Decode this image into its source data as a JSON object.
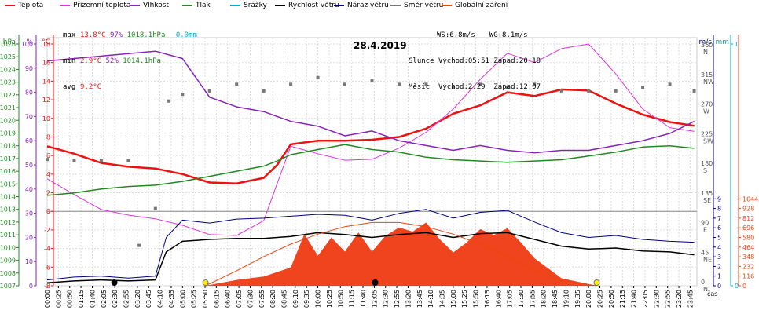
{
  "legend": [
    {
      "label": "Teplota",
      "color": "#ee1111"
    },
    {
      "label": "Přízemní teplota",
      "color": "#dd33dd"
    },
    {
      "label": "Vlhkost",
      "color": "#8822bb"
    },
    {
      "label": "Tlak",
      "color": "#228822"
    },
    {
      "label": "Srážky",
      "color": "#00aacc"
    },
    {
      "label": "Rychlost větru",
      "color": "#000000"
    },
    {
      "label": "Náraz větru",
      "color": "#000080"
    },
    {
      "label": "Směr větru",
      "color": "#777777"
    },
    {
      "label": "Globální záření",
      "color": "#ee4411"
    }
  ],
  "stats": {
    "max_label": "max",
    "max_temp": "13.8°C",
    "max_hum": "97%",
    "max_press": "1018.1hPa",
    "max_rain": "0.0mm",
    "min_label": "min",
    "min_temp": "2.9°C",
    "min_hum": "52%",
    "min_press": "1014.1hPa",
    "avg_label": "avg",
    "avg_temp": "9.2°C",
    "ws": "WS:6.8m/s",
    "wg": "WG:8.1m/s",
    "sun_label": "Slunce",
    "sun_rise": "Východ:05:51",
    "sun_set": "Západ:20:18",
    "moon_label": "Měsíc",
    "moon_rise": "Východ:2:29",
    "moon_set": "Západ:12:07"
  },
  "chart_data": {
    "type": "line",
    "title": "28.4.2019",
    "xlabel": "čas",
    "x_ticks": [
      "00:00",
      "00:25",
      "00:50",
      "01:15",
      "01:40",
      "02:05",
      "02:30",
      "02:55",
      "03:20",
      "03:45",
      "04:10",
      "04:35",
      "05:00",
      "05:25",
      "05:50",
      "06:15",
      "06:40",
      "07:05",
      "07:30",
      "07:55",
      "08:20",
      "08:45",
      "09:10",
      "09:35",
      "10:00",
      "10:25",
      "10:50",
      "11:15",
      "11:40",
      "12:05",
      "12:30",
      "12:55",
      "13:20",
      "13:45",
      "14:10",
      "14:35",
      "15:00",
      "15:25",
      "15:50",
      "16:15",
      "16:40",
      "17:05",
      "17:30",
      "17:55",
      "18:20",
      "18:45",
      "19:10",
      "19:35",
      "20:00",
      "20:25",
      "20:50",
      "21:15",
      "21:40",
      "22:05",
      "22:30",
      "22:55",
      "23:20",
      "23:45"
    ],
    "axes": {
      "pressure_hpa": {
        "label": "hPa",
        "ticks": [
          1007,
          1008,
          1009,
          1010,
          1011,
          1012,
          1013,
          1014,
          1015,
          1016,
          1017,
          1018,
          1019,
          1020,
          1021,
          1022,
          1023,
          1024,
          1025,
          1026
        ]
      },
      "humidity_pct": {
        "label": "%",
        "ticks": [
          0,
          10,
          20,
          30,
          40,
          50,
          60,
          70,
          80,
          90,
          100
        ]
      },
      "temperature_c": {
        "label": "°C",
        "ticks": [
          -8,
          -6,
          -4,
          -2,
          0,
          2,
          4,
          6,
          8,
          10,
          12,
          14,
          16,
          18
        ]
      },
      "wind_ms": {
        "label": "m/s",
        "ticks": [
          0,
          1,
          2,
          3,
          4,
          5,
          6,
          7,
          8,
          9
        ]
      },
      "rain_mm": {
        "label": "mm",
        "ticks": [
          0,
          1
        ]
      },
      "radiation_wm2": {
        "label": "W/m²",
        "ticks": [
          0,
          116,
          232,
          348,
          464,
          580,
          696,
          812,
          928,
          1044
        ]
      },
      "wind_dir": {
        "ticks": [
          {
            "deg": 0,
            "name": "N"
          },
          {
            "deg": 45,
            "name": "NE"
          },
          {
            "deg": 90,
            "name": "E"
          },
          {
            "deg": 135,
            "name": "SE"
          },
          {
            "deg": 180,
            "name": "S"
          },
          {
            "deg": 225,
            "name": "SW"
          },
          {
            "deg": 270,
            "name": "W"
          },
          {
            "deg": 315,
            "name": "NW"
          },
          {
            "deg": 360,
            "name": "N"
          }
        ]
      }
    },
    "series": [
      {
        "name": "Teplota",
        "axis": "temperature_c",
        "color": "#ee1111",
        "x": [
          0,
          1,
          2,
          3,
          4,
          5,
          6,
          7,
          8,
          8.5,
          9,
          10,
          11,
          12,
          13,
          14,
          15,
          16,
          17,
          18,
          19,
          20,
          21,
          22,
          23,
          23.9
        ],
        "y": [
          7.0,
          6.2,
          5.2,
          4.8,
          4.6,
          4.0,
          3.1,
          3.0,
          3.6,
          5.0,
          7.2,
          7.6,
          7.6,
          7.7,
          8.0,
          8.9,
          10.5,
          11.4,
          12.8,
          12.4,
          13.1,
          13.0,
          11.6,
          10.4,
          9.6,
          9.2
        ]
      },
      {
        "name": "Přízemní teplota",
        "axis": "temperature_c",
        "color": "#dd33dd",
        "x": [
          0,
          1,
          2,
          3,
          4,
          5,
          6,
          7,
          8,
          8.5,
          9,
          10,
          11,
          12,
          13,
          14,
          15,
          16,
          17,
          18,
          19,
          20,
          21,
          22,
          23,
          23.9
        ],
        "y": [
          3.5,
          1.8,
          0.2,
          -0.4,
          -0.8,
          -1.5,
          -2.5,
          -2.6,
          -1.0,
          3.0,
          7.0,
          6.2,
          5.5,
          5.6,
          6.8,
          8.5,
          11.0,
          14.2,
          17.0,
          16.0,
          17.5,
          18.0,
          14.8,
          11.0,
          9.0,
          8.6
        ]
      },
      {
        "name": "Vlhkost",
        "axis": "humidity_pct",
        "color": "#8822bb",
        "x": [
          0,
          1,
          2,
          3,
          4,
          5,
          6,
          7,
          8,
          8.5,
          9,
          10,
          11,
          12,
          13,
          14,
          15,
          16,
          17,
          18,
          19,
          20,
          21,
          22,
          23,
          23.9
        ],
        "y": [
          93,
          94,
          95,
          96,
          97,
          94,
          78,
          74,
          72,
          70,
          68,
          66,
          62,
          64,
          60,
          58,
          56,
          58,
          56,
          55,
          56,
          56,
          58,
          60,
          63,
          68
        ]
      },
      {
        "name": "Tlak",
        "axis": "pressure_hpa",
        "color": "#228822",
        "x": [
          0,
          1,
          2,
          3,
          4,
          5,
          6,
          7,
          8,
          8.5,
          9,
          10,
          11,
          12,
          13,
          14,
          15,
          16,
          17,
          18,
          19,
          20,
          21,
          22,
          23,
          23.9
        ],
        "y": [
          1014.1,
          1014.3,
          1014.6,
          1014.8,
          1014.9,
          1015.2,
          1015.6,
          1016.0,
          1016.4,
          1016.8,
          1017.3,
          1017.7,
          1018.1,
          1017.7,
          1017.5,
          1017.1,
          1016.9,
          1016.8,
          1016.7,
          1016.8,
          1016.9,
          1017.2,
          1017.5,
          1017.9,
          1018.0,
          1017.8
        ]
      },
      {
        "name": "Rychlost větru",
        "axis": "wind_ms",
        "color": "#000000",
        "x": [
          0,
          1,
          2,
          3,
          4,
          4.4,
          5,
          6,
          7,
          8,
          9,
          10,
          11,
          12,
          13,
          14,
          15,
          16,
          17,
          18,
          19,
          20,
          21,
          22,
          23,
          23.9
        ],
        "y": [
          0.3,
          0.5,
          0.6,
          0.5,
          0.6,
          3.5,
          4.6,
          4.8,
          4.9,
          4.9,
          5.1,
          5.5,
          5.3,
          5.0,
          5.3,
          5.5,
          5.0,
          5.4,
          5.5,
          4.8,
          4.1,
          3.8,
          3.9,
          3.6,
          3.5,
          3.2
        ]
      },
      {
        "name": "Náraz větru",
        "axis": "wind_ms",
        "color": "#000080",
        "x": [
          0,
          1,
          2,
          3,
          4,
          4.4,
          5,
          6,
          7,
          8,
          9,
          10,
          11,
          12,
          13,
          14,
          15,
          16,
          17,
          18,
          19,
          20,
          21,
          22,
          23,
          23.9
        ],
        "y": [
          0.6,
          0.9,
          1.0,
          0.8,
          1.0,
          5.0,
          6.8,
          6.5,
          6.9,
          7.0,
          7.2,
          7.4,
          7.3,
          6.8,
          7.5,
          7.9,
          7.0,
          7.6,
          7.8,
          6.6,
          5.5,
          5.0,
          5.2,
          4.8,
          4.6,
          4.5
        ]
      },
      {
        "name": "Směr větru",
        "axis": "wind_dir",
        "color": "#777777",
        "x": [
          0,
          1,
          2,
          3,
          3.4,
          4,
          4.5,
          5,
          6,
          7,
          8,
          9,
          10,
          11,
          12,
          13,
          14,
          15,
          16,
          17,
          18,
          19,
          20,
          21,
          22,
          23,
          23.9
        ],
        "y": [
          188,
          186,
          186,
          186,
          60,
          115,
          275,
          285,
          290,
          300,
          290,
          300,
          310,
          300,
          305,
          300,
          300,
          295,
          300,
          295,
          300,
          290,
          290,
          290,
          295,
          300,
          290
        ]
      },
      {
        "name": "Globální záření",
        "axis": "radiation_wm2",
        "color": "#ee4411",
        "x": [
          5.85,
          7,
          8,
          9,
          9.5,
          10,
          10.5,
          11,
          11.5,
          12,
          12.5,
          13,
          13.5,
          14,
          14.5,
          15,
          15.5,
          16,
          16.5,
          17,
          17.5,
          18,
          19,
          20.3
        ],
        "y": [
          0,
          70,
          110,
          220,
          620,
          360,
          580,
          410,
          640,
          410,
          600,
          700,
          650,
          760,
          560,
          400,
          520,
          680,
          610,
          690,
          520,
          330,
          90,
          0
        ]
      },
      {
        "name": "Globální záření (max)",
        "axis": "radiation_wm2",
        "color": "#ee4411",
        "x": [
          5.85,
          7,
          8,
          9,
          10,
          11,
          12,
          13,
          14,
          15,
          16,
          17,
          18,
          19,
          20.3
        ],
        "y": [
          0,
          180,
          350,
          500,
          620,
          710,
          760,
          760,
          710,
          620,
          500,
          350,
          180,
          60,
          0
        ]
      }
    ]
  }
}
